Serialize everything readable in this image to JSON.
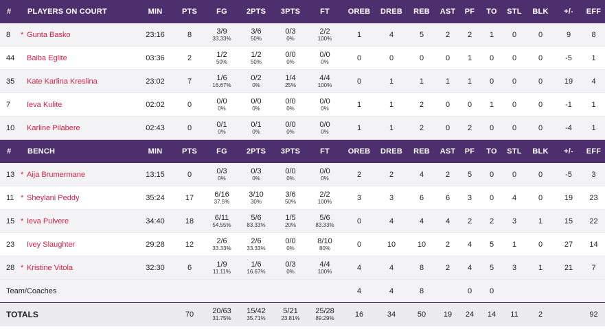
{
  "headers": {
    "num": "#",
    "court_title": "PLAYERS ON COURT",
    "bench_title": "BENCH",
    "cols": [
      "MIN",
      "PTS",
      "FG",
      "2PTS",
      "3PTS",
      "FT",
      "OREB",
      "DREB",
      "REB",
      "AST",
      "PF",
      "TO",
      "STL",
      "BLK",
      "+/-",
      "EFF"
    ]
  },
  "court_players": [
    {
      "num": "8",
      "starter": "*",
      "name": "Gunta Basko",
      "min": "23:16",
      "pts": "8",
      "fg": "3/9",
      "fg_pct": "33.33%",
      "p2": "3/6",
      "p2_pct": "50%",
      "p3": "0/3",
      "p3_pct": "0%",
      "ft": "2/2",
      "ft_pct": "100%",
      "oreb": "1",
      "dreb": "4",
      "reb": "5",
      "ast": "2",
      "pf": "2",
      "to": "1",
      "stl": "0",
      "blk": "0",
      "pm": "9",
      "eff": "8"
    },
    {
      "num": "44",
      "starter": "",
      "name": "Baiba Eglite",
      "min": "03:36",
      "pts": "2",
      "fg": "1/2",
      "fg_pct": "50%",
      "p2": "1/2",
      "p2_pct": "50%",
      "p3": "0/0",
      "p3_pct": "0%",
      "ft": "0/0",
      "ft_pct": "0%",
      "oreb": "0",
      "dreb": "0",
      "reb": "0",
      "ast": "0",
      "pf": "1",
      "to": "0",
      "stl": "0",
      "blk": "0",
      "pm": "-5",
      "eff": "1"
    },
    {
      "num": "35",
      "starter": "",
      "name": "Kate Karlina Kreslina",
      "min": "23:02",
      "pts": "7",
      "fg": "1/6",
      "fg_pct": "16.67%",
      "p2": "0/2",
      "p2_pct": "0%",
      "p3": "1/4",
      "p3_pct": "25%",
      "ft": "4/4",
      "ft_pct": "100%",
      "oreb": "0",
      "dreb": "1",
      "reb": "1",
      "ast": "1",
      "pf": "1",
      "to": "0",
      "stl": "0",
      "blk": "0",
      "pm": "19",
      "eff": "4"
    },
    {
      "num": "7",
      "starter": "",
      "name": "Ieva Kulite",
      "min": "02:02",
      "pts": "0",
      "fg": "0/0",
      "fg_pct": "0%",
      "p2": "0/0",
      "p2_pct": "0%",
      "p3": "0/0",
      "p3_pct": "0%",
      "ft": "0/0",
      "ft_pct": "0%",
      "oreb": "1",
      "dreb": "1",
      "reb": "2",
      "ast": "0",
      "pf": "0",
      "to": "1",
      "stl": "0",
      "blk": "0",
      "pm": "-1",
      "eff": "1"
    },
    {
      "num": "10",
      "starter": "",
      "name": "Karline Pilabere",
      "min": "02:43",
      "pts": "0",
      "fg": "0/1",
      "fg_pct": "0%",
      "p2": "0/1",
      "p2_pct": "0%",
      "p3": "0/0",
      "p3_pct": "0%",
      "ft": "0/0",
      "ft_pct": "0%",
      "oreb": "1",
      "dreb": "1",
      "reb": "2",
      "ast": "0",
      "pf": "2",
      "to": "0",
      "stl": "0",
      "blk": "0",
      "pm": "-4",
      "eff": "1"
    }
  ],
  "bench_players": [
    {
      "num": "13",
      "starter": "*",
      "name": "Aija Brumermane",
      "min": "13:15",
      "pts": "0",
      "fg": "0/3",
      "fg_pct": "0%",
      "p2": "0/3",
      "p2_pct": "0%",
      "p3": "0/0",
      "p3_pct": "0%",
      "ft": "0/0",
      "ft_pct": "0%",
      "oreb": "2",
      "dreb": "2",
      "reb": "4",
      "ast": "2",
      "pf": "5",
      "to": "0",
      "stl": "0",
      "blk": "0",
      "pm": "-5",
      "eff": "3"
    },
    {
      "num": "11",
      "starter": "*",
      "name": "Sheylani Peddy",
      "min": "35:24",
      "pts": "17",
      "fg": "6/16",
      "fg_pct": "37.5%",
      "p2": "3/10",
      "p2_pct": "30%",
      "p3": "3/6",
      "p3_pct": "50%",
      "ft": "2/2",
      "ft_pct": "100%",
      "oreb": "3",
      "dreb": "3",
      "reb": "6",
      "ast": "6",
      "pf": "3",
      "to": "0",
      "stl": "4",
      "blk": "0",
      "pm": "19",
      "eff": "23"
    },
    {
      "num": "15",
      "starter": "*",
      "name": "Ieva Pulvere",
      "min": "34:40",
      "pts": "18",
      "fg": "6/11",
      "fg_pct": "54.55%",
      "p2": "5/6",
      "p2_pct": "83.33%",
      "p3": "1/5",
      "p3_pct": "20%",
      "ft": "5/6",
      "ft_pct": "83.33%",
      "oreb": "0",
      "dreb": "4",
      "reb": "4",
      "ast": "4",
      "pf": "2",
      "to": "2",
      "stl": "3",
      "blk": "1",
      "pm": "15",
      "eff": "22"
    },
    {
      "num": "23",
      "starter": "",
      "name": "Ivey Slaughter",
      "min": "29:28",
      "pts": "12",
      "fg": "2/6",
      "fg_pct": "33.33%",
      "p2": "2/6",
      "p2_pct": "33.33%",
      "p3": "0/0",
      "p3_pct": "0%",
      "ft": "8/10",
      "ft_pct": "80%",
      "oreb": "0",
      "dreb": "10",
      "reb": "10",
      "ast": "2",
      "pf": "4",
      "to": "5",
      "stl": "1",
      "blk": "0",
      "pm": "27",
      "eff": "14"
    },
    {
      "num": "28",
      "starter": "*",
      "name": "Kristine Vitola",
      "min": "32:30",
      "pts": "6",
      "fg": "1/9",
      "fg_pct": "11.11%",
      "p2": "1/6",
      "p2_pct": "16.67%",
      "p3": "0/3",
      "p3_pct": "0%",
      "ft": "4/4",
      "ft_pct": "100%",
      "oreb": "4",
      "dreb": "4",
      "reb": "8",
      "ast": "2",
      "pf": "4",
      "to": "5",
      "stl": "3",
      "blk": "1",
      "pm": "21",
      "eff": "7"
    }
  ],
  "team": {
    "label": "Team/Coaches",
    "oreb": "4",
    "dreb": "4",
    "reb": "8",
    "pf": "0",
    "to": "0"
  },
  "totals": {
    "label": "TOTALS",
    "pts": "70",
    "fg": "20/63",
    "fg_pct": "31.75%",
    "p2": "15/42",
    "p2_pct": "35.71%",
    "p3": "5/21",
    "p3_pct": "23.81%",
    "ft": "25/28",
    "ft_pct": "89.29%",
    "oreb": "16",
    "dreb": "34",
    "reb": "50",
    "ast": "19",
    "pf": "24",
    "to": "14",
    "stl": "11",
    "blk": "2",
    "eff": "92"
  },
  "colors": {
    "header_bg": "#4d2f6e",
    "player_link": "#d41f44",
    "row_alt": "#f3f3f5"
  }
}
